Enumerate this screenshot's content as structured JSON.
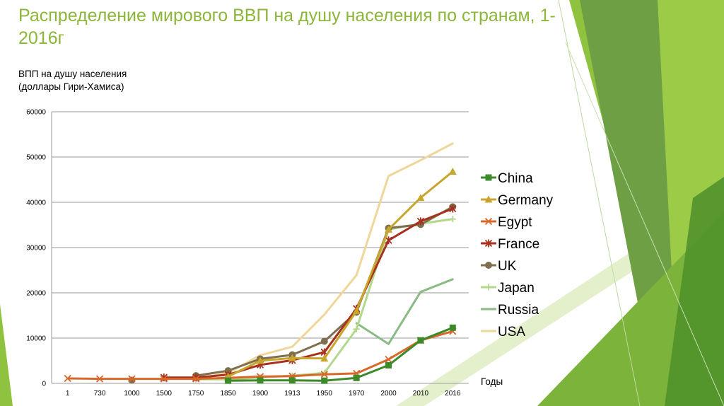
{
  "slide": {
    "title": "Распределение мирового ВВП на душу населения по странам, 1-2016г"
  },
  "colors": {
    "title": "#8bb63a",
    "green_dark": "#4e8f2a",
    "green_mid": "#6e9f45",
    "green_light": "#8fc23f",
    "green_pale": "#dcebb8"
  },
  "chart_data": {
    "type": "line",
    "ylabel": "ВПП на душу населения (доллары Гири-Хамиса)",
    "xlabel": "Годы",
    "categories": [
      "1",
      "730",
      "1000",
      "1500",
      "1750",
      "1850",
      "1900",
      "1913",
      "1950",
      "1970",
      "2000",
      "2010",
      "2016"
    ],
    "ylim": [
      0,
      60000
    ],
    "yticks": [
      0,
      10000,
      20000,
      30000,
      40000,
      50000,
      60000
    ],
    "grid": true,
    "legend": "right",
    "series": [
      {
        "name": "China",
        "color": "#3d8a2a",
        "marker": "square",
        "values": [
          null,
          null,
          null,
          null,
          null,
          600,
          650,
          650,
          600,
          1200,
          4000,
          9500,
          12300
        ]
      },
      {
        "name": "Germany",
        "color": "#c8a52c",
        "marker": "triangle",
        "values": [
          null,
          null,
          null,
          null,
          null,
          1500,
          5000,
          5600,
          5500,
          16000,
          34000,
          41000,
          46800
        ]
      },
      {
        "name": "Egypt",
        "color": "#d8672a",
        "marker": "x",
        "values": [
          1100,
          1000,
          1000,
          1000,
          1000,
          1200,
          1500,
          1600,
          2000,
          2200,
          5300,
          9500,
          11500
        ]
      },
      {
        "name": "France",
        "color": "#a8301e",
        "marker": "star",
        "values": [
          null,
          null,
          null,
          1300,
          1300,
          1900,
          4100,
          5100,
          6900,
          16500,
          31600,
          35800,
          38600
        ]
      },
      {
        "name": "UK",
        "color": "#7e6f4e",
        "marker": "circle",
        "values": [
          null,
          null,
          700,
          null,
          1700,
          2800,
          5400,
          6300,
          9300,
          15700,
          34300,
          35100,
          39000
        ]
      },
      {
        "name": "Japan",
        "color": "#b2d88c",
        "marker": "plus",
        "values": [
          null,
          null,
          null,
          null,
          900,
          900,
          1300,
          1700,
          2300,
          12000,
          34000,
          35300,
          36300
        ]
      },
      {
        "name": "Russia",
        "color": "#8bba85",
        "marker": "none",
        "values": [
          null,
          null,
          null,
          null,
          null,
          null,
          null,
          null,
          null,
          13300,
          8700,
          20200,
          23000
        ]
      },
      {
        "name": "USA",
        "color": "#efd69a",
        "marker": "none",
        "values": [
          null,
          null,
          null,
          null,
          1000,
          2300,
          6200,
          8100,
          15200,
          23900,
          45800,
          49300,
          53000
        ]
      }
    ]
  }
}
